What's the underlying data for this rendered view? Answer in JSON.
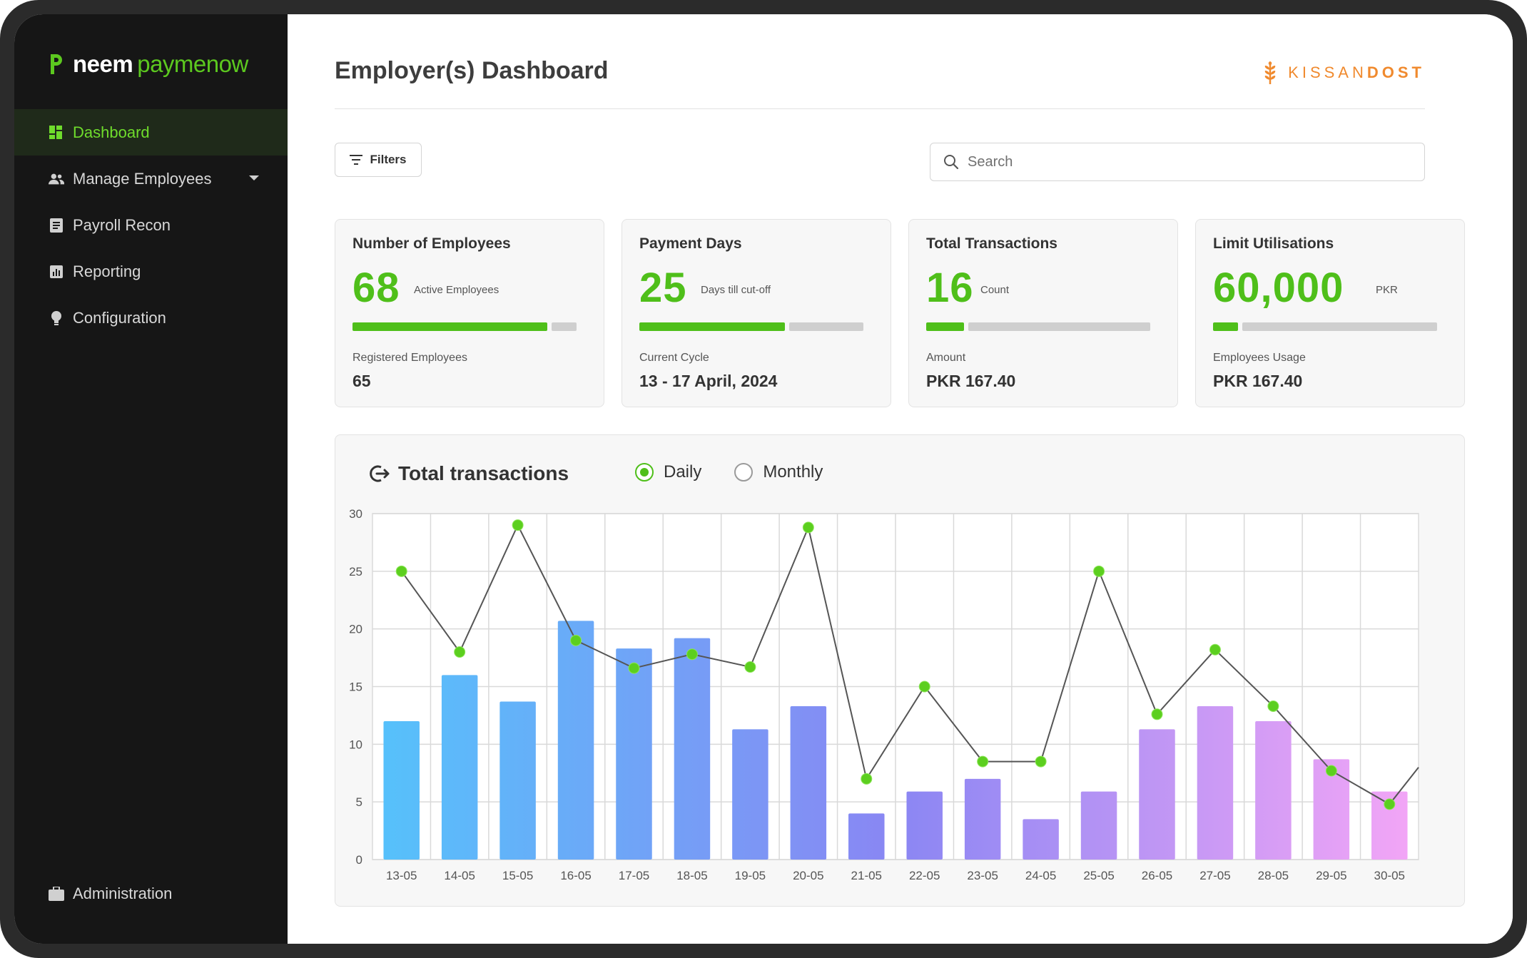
{
  "app": {
    "brand_neem": "neem",
    "brand_pay": "paymenow",
    "client_brand_light": "KISSAN",
    "client_brand_bold": "DOST"
  },
  "sidebar": {
    "items": [
      {
        "label": "Dashboard",
        "icon": "dashboard-icon",
        "active": true
      },
      {
        "label": "Manage Employees",
        "icon": "users-icon",
        "active": false,
        "has_dropdown": true
      },
      {
        "label": "Payroll Recon",
        "icon": "document-icon",
        "active": false
      },
      {
        "label": "Reporting",
        "icon": "bar-chart-icon",
        "active": false
      },
      {
        "label": "Configuration",
        "icon": "bulb-icon",
        "active": false
      }
    ],
    "bottom_item": {
      "label": "Administration",
      "icon": "briefcase-icon"
    }
  },
  "header": {
    "title": "Employer(s) Dashboard",
    "filters_label": "Filters",
    "search_placeholder": "Search"
  },
  "cards": [
    {
      "title": "Number of Employees",
      "value": "68",
      "unit": "Active Employees",
      "progress": 0.87,
      "sub_label": "Registered Employees",
      "sub_value": "65"
    },
    {
      "title": "Payment Days",
      "value": "25",
      "unit": "Days till cut-off",
      "progress": 0.65,
      "sub_label": "Current Cycle",
      "sub_value": "13 - 17 April, 2024"
    },
    {
      "title": "Total Transactions",
      "value": "16",
      "unit": "Count",
      "progress": 0.17,
      "sub_label": "Amount",
      "sub_value": "PKR 167.40"
    },
    {
      "title": "Limit Utilisations",
      "value": "60,000",
      "unit": "PKR",
      "progress": 0.11,
      "sub_label": "Employees Usage",
      "sub_value": "PKR 167.40"
    }
  ],
  "colors": {
    "accent": "#4fbf1a",
    "sidebar_bg": "#161616",
    "active_text": "#6fdc2c",
    "brand_orange": "#f08a2e",
    "bar_gradient_start": "#55c2fb",
    "bar_gradient_mid": "#8a86f3",
    "bar_gradient_end": "#f4a6f6"
  },
  "chart": {
    "title": "Total transactions",
    "radio_daily": "Daily",
    "radio_monthly": "Monthly",
    "selected": "Daily"
  },
  "chart_data": {
    "type": "bar",
    "categories": [
      "13-05",
      "14-05",
      "15-05",
      "16-05",
      "17-05",
      "18-05",
      "19-05",
      "20-05",
      "21-05",
      "22-05",
      "23-05",
      "24-05",
      "25-05",
      "26-05",
      "27-05",
      "28-05",
      "29-05",
      "30-05"
    ],
    "series": [
      {
        "type": "bar",
        "values": [
          12,
          16,
          13.7,
          20.7,
          18.3,
          19.2,
          11.3,
          13.3,
          4,
          5.9,
          7,
          3.5,
          5.9,
          11.3,
          13.3,
          12,
          8.7,
          5.9
        ]
      },
      {
        "type": "line",
        "values": [
          25,
          18,
          29,
          19,
          16.6,
          17.8,
          16.7,
          28.8,
          7,
          15,
          8.5,
          8.5,
          25,
          12.6,
          18.2,
          13.3,
          7.7,
          4.8
        ],
        "end_value": 8
      }
    ],
    "ylim": [
      0,
      30
    ],
    "yticks": [
      0,
      5,
      10,
      15,
      20,
      25,
      30
    ],
    "grid": true
  }
}
